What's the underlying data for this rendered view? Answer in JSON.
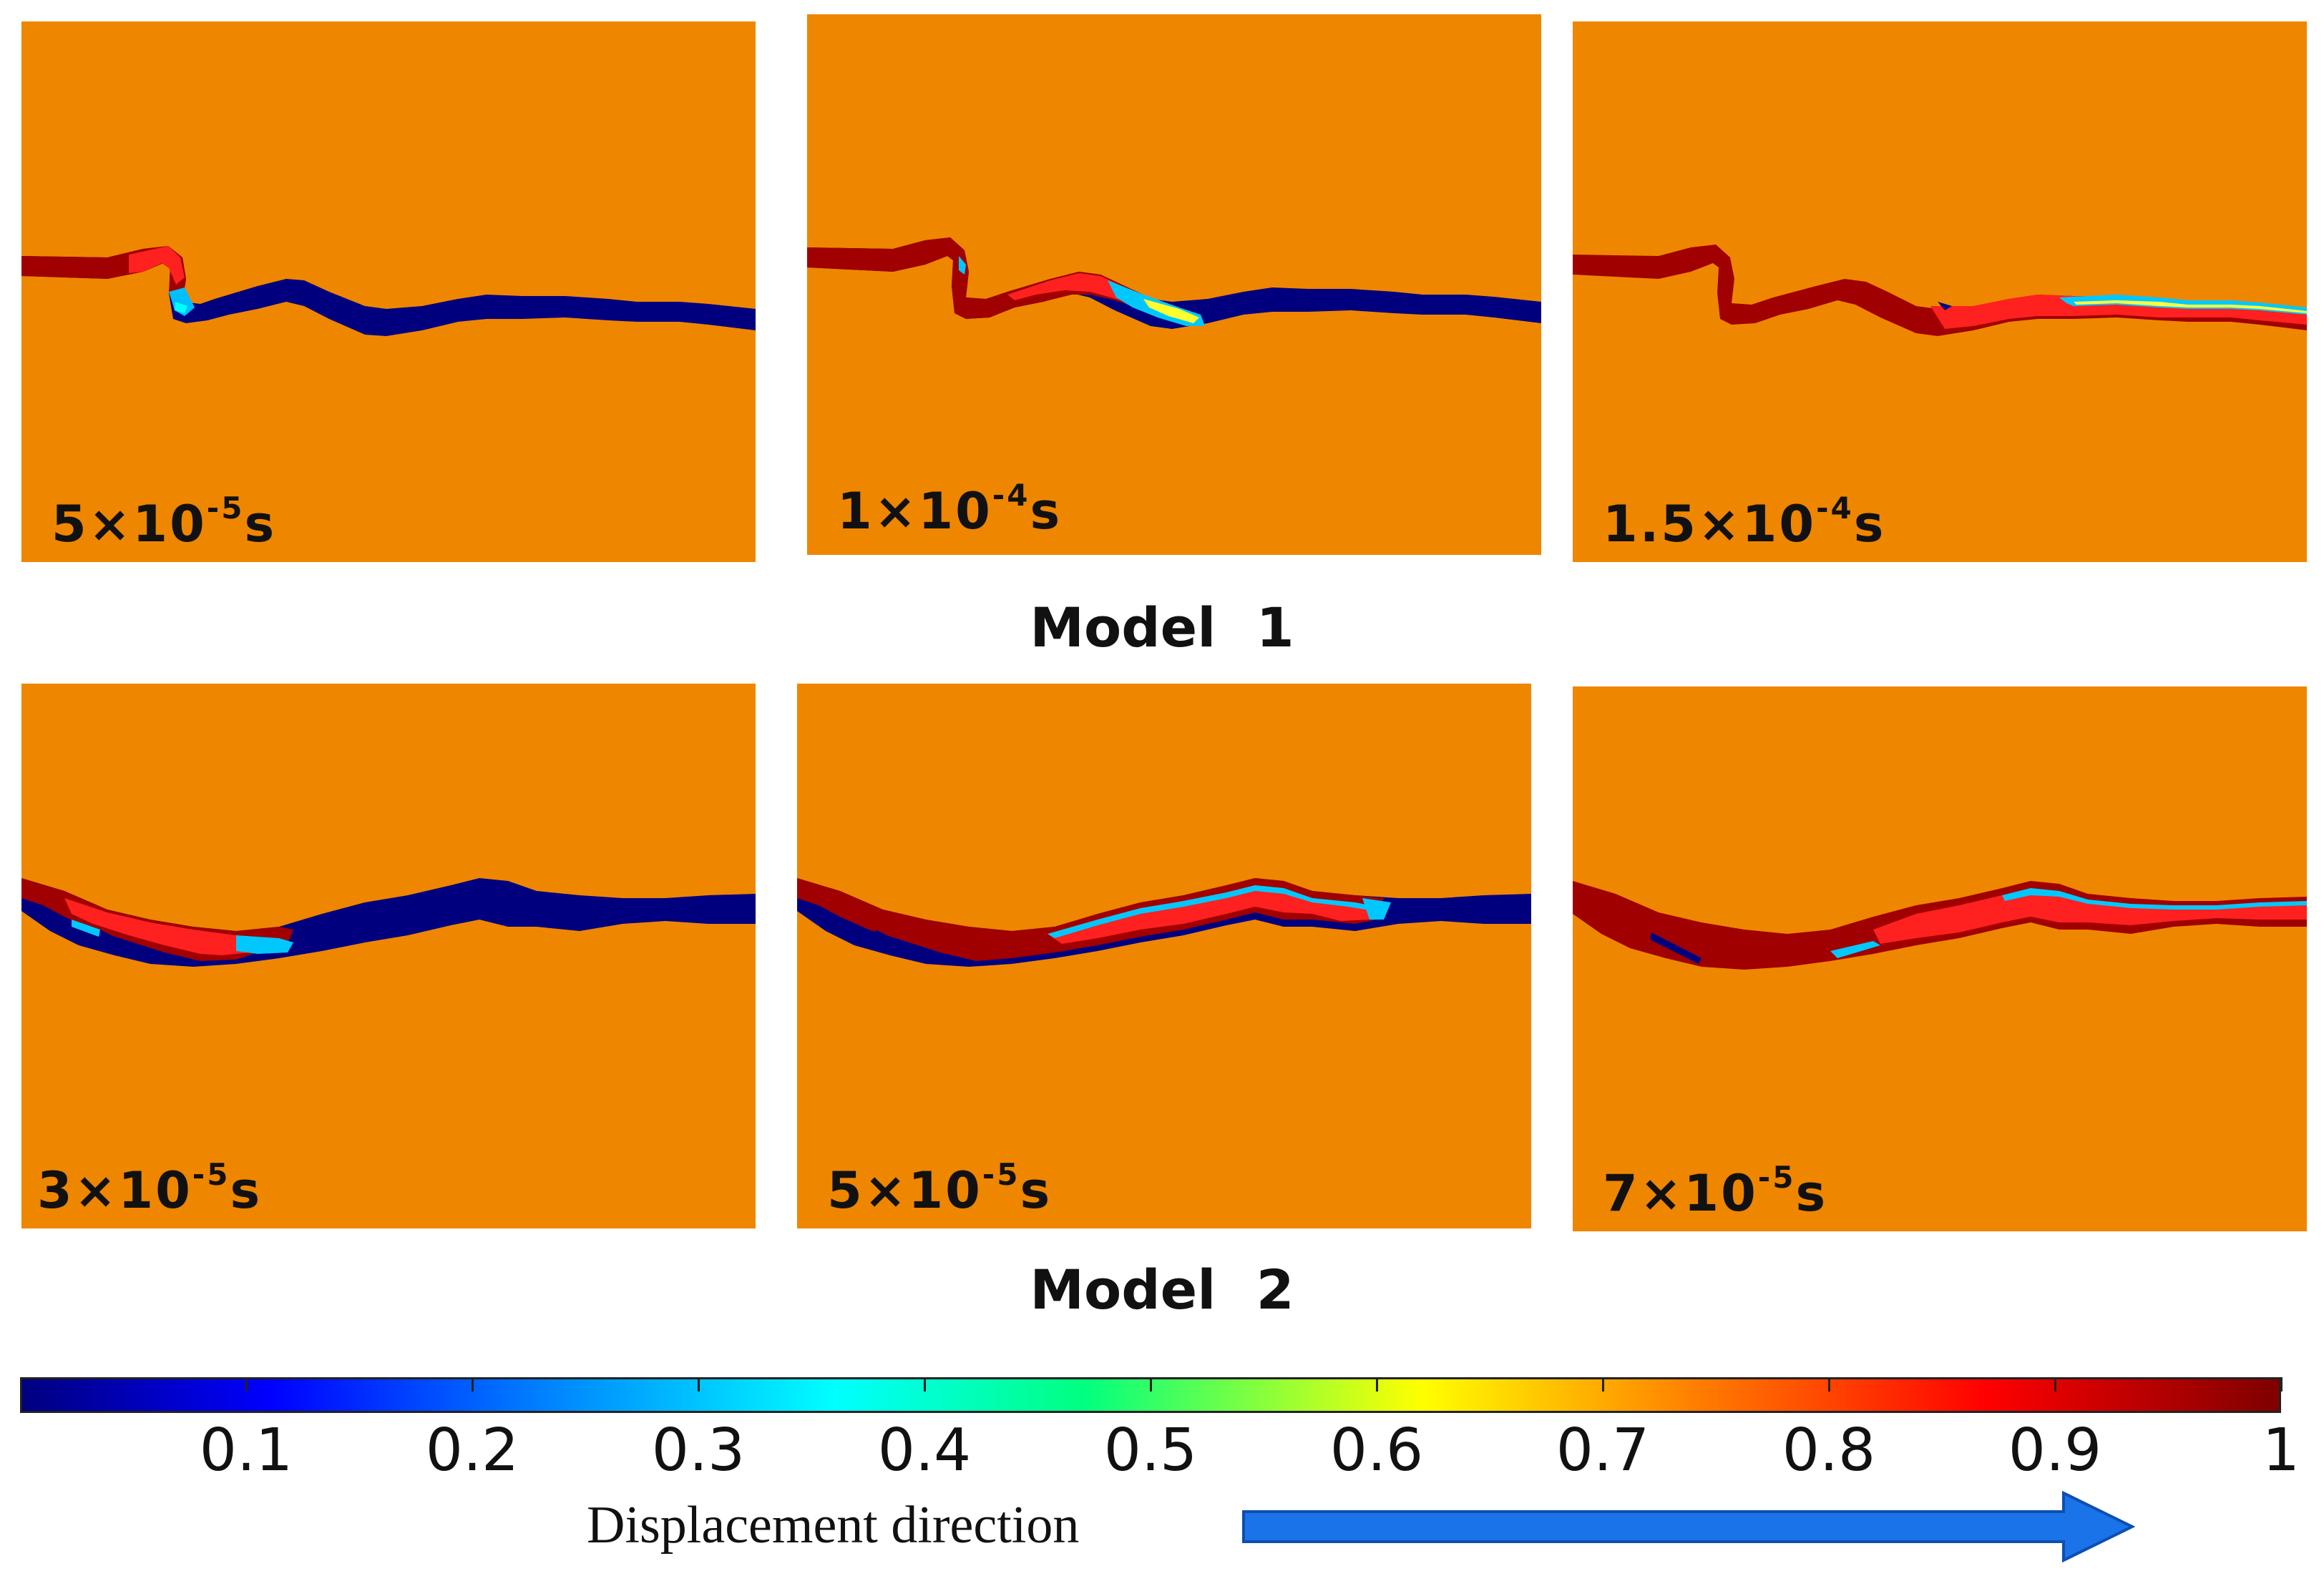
{
  "panels": [
    {
      "id": "m1-t1",
      "label": {
        "mantissa": "5",
        "times": "×",
        "base": "10",
        "exponent": "-5",
        "unit": "s"
      }
    },
    {
      "id": "m1-t2",
      "label": {
        "mantissa": "1",
        "times": "×",
        "base": "10",
        "exponent": "-4",
        "unit": "s"
      }
    },
    {
      "id": "m1-t3",
      "label": {
        "mantissa": "1.5",
        "times": "×",
        "base": "10",
        "exponent": "-4",
        "unit": "s"
      }
    },
    {
      "id": "m2-t1",
      "label": {
        "mantissa": "3",
        "times": "×",
        "base": "10",
        "exponent": "-5",
        "unit": "s"
      }
    },
    {
      "id": "m2-t2",
      "label": {
        "mantissa": "5",
        "times": "×",
        "base": "10",
        "exponent": "-5",
        "unit": "s"
      }
    },
    {
      "id": "m2-t3",
      "label": {
        "mantissa": "7",
        "times": "×",
        "base": "10",
        "exponent": "-5",
        "unit": "s"
      }
    }
  ],
  "models": {
    "model1_title": "Model  1",
    "model2_title": "Model  2"
  },
  "colorbar": {
    "ticks": [
      "0.1",
      "0.2",
      "0.3",
      "0.4",
      "0.5",
      "0.6",
      "0.7",
      "0.8",
      "0.9",
      "1"
    ],
    "range": [
      0,
      1
    ]
  },
  "direction": {
    "label": "Displacement direction"
  },
  "colors": {
    "matrix": "#ef8600",
    "low": "#00007f",
    "high": "#7f0000",
    "arrow": "#1a73e8"
  }
}
